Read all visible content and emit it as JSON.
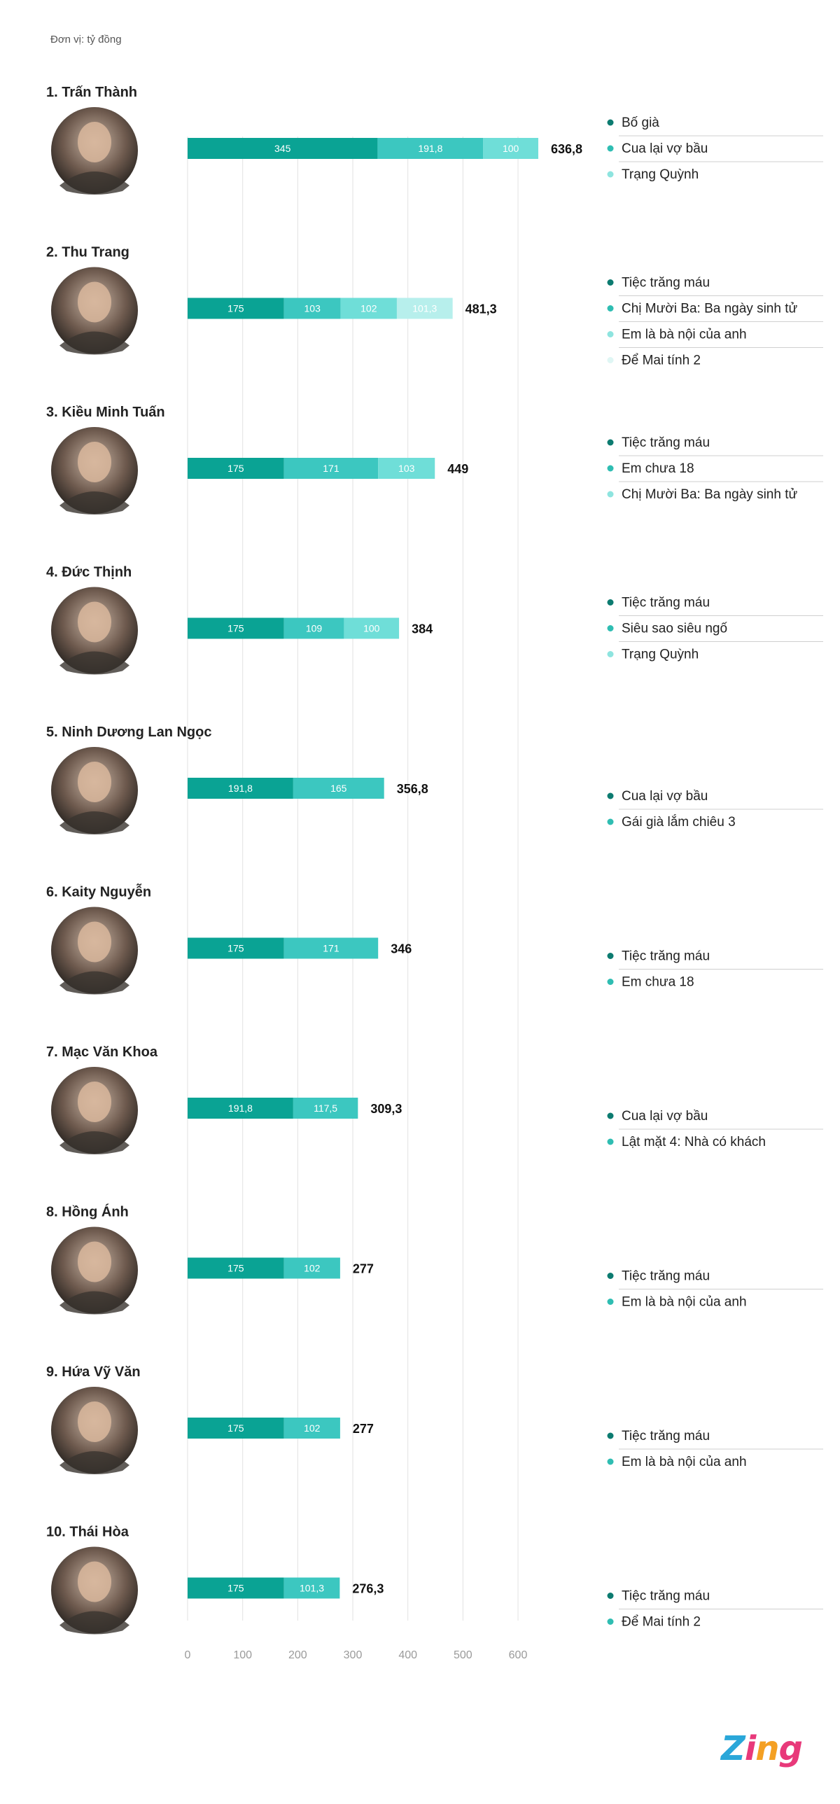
{
  "unit_label": "Đơn vị: tỷ đồng",
  "logo_text": "Zing",
  "colors": {
    "shades": [
      "#0aa394",
      "#3cc7c0",
      "#6fded8",
      "#b7efec"
    ],
    "legend_dots": [
      "#0c7b70",
      "#2fbdb2",
      "#8ee4df",
      "#dff6f4"
    ],
    "grid": "#e2e2e2",
    "divider": "#cfcfcf"
  },
  "chart_data": {
    "type": "bar",
    "orientation": "horizontal",
    "stacked": true,
    "xlim": [
      0,
      600
    ],
    "x_ticks": [
      0,
      100,
      200,
      300,
      400,
      500,
      600
    ],
    "grid": true,
    "actors": [
      {
        "name": "1. Trấn Thành",
        "total": "636,8",
        "segments": [
          {
            "film": "Bố già",
            "value": 345,
            "label": "345"
          },
          {
            "film": "Cua lại vợ bầu",
            "value": 191.8,
            "label": "191,8"
          },
          {
            "film": "Trạng Quỳnh",
            "value": 100,
            "label": "100"
          }
        ]
      },
      {
        "name": "2. Thu Trang",
        "total": "481,3",
        "segments": [
          {
            "film": "Tiệc trăng máu",
            "value": 175,
            "label": "175"
          },
          {
            "film": "Chị Mười Ba: Ba ngày sinh tử",
            "value": 103,
            "label": "103"
          },
          {
            "film": "Em là bà nội của anh",
            "value": 102,
            "label": "102"
          },
          {
            "film": "Để Mai tính 2",
            "value": 101.3,
            "label": "101,3"
          }
        ]
      },
      {
        "name": "3. Kiều Minh Tuấn",
        "total": "449",
        "segments": [
          {
            "film": "Tiệc trăng máu",
            "value": 175,
            "label": "175"
          },
          {
            "film": "Em chưa 18",
            "value": 171,
            "label": "171"
          },
          {
            "film": "Chị Mười Ba: Ba ngày sinh tử",
            "value": 103,
            "label": "103"
          }
        ]
      },
      {
        "name": "4. Đức Thịnh",
        "total": "384",
        "segments": [
          {
            "film": "Tiệc trăng máu",
            "value": 175,
            "label": "175"
          },
          {
            "film": "Siêu sao siêu ngố",
            "value": 109,
            "label": "109"
          },
          {
            "film": "Trạng Quỳnh",
            "value": 100,
            "label": "100"
          }
        ]
      },
      {
        "name": "5. Ninh Dương Lan Ngọc",
        "total": "356,8",
        "segments": [
          {
            "film": "Cua lại vợ bầu",
            "value": 191.8,
            "label": "191,8"
          },
          {
            "film": "Gái già lắm chiêu 3",
            "value": 165,
            "label": "165"
          }
        ]
      },
      {
        "name": "6. Kaity Nguyễn",
        "total": "346",
        "segments": [
          {
            "film": "Tiệc trăng máu",
            "value": 175,
            "label": "175"
          },
          {
            "film": "Em chưa 18",
            "value": 171,
            "label": "171"
          }
        ]
      },
      {
        "name": "7. Mạc Văn Khoa",
        "total": "309,3",
        "segments": [
          {
            "film": "Cua lại vợ bầu",
            "value": 191.8,
            "label": "191,8"
          },
          {
            "film": "Lật mặt 4: Nhà có khách",
            "value": 117.5,
            "label": "117,5"
          }
        ]
      },
      {
        "name": "8. Hồng Ánh",
        "total": "277",
        "segments": [
          {
            "film": "Tiệc trăng máu",
            "value": 175,
            "label": "175"
          },
          {
            "film": "Em là bà nội của anh",
            "value": 102,
            "label": "102"
          }
        ]
      },
      {
        "name": "9. Hứa Vỹ Văn",
        "total": "277",
        "segments": [
          {
            "film": "Tiệc trăng máu",
            "value": 175,
            "label": "175"
          },
          {
            "film": "Em là bà nội của anh",
            "value": 102,
            "label": "102"
          }
        ]
      },
      {
        "name": "10. Thái Hòa",
        "total": "276,3",
        "segments": [
          {
            "film": "Tiệc trăng máu",
            "value": 175,
            "label": "175"
          },
          {
            "film": "Để Mai tính 2",
            "value": 101.3,
            "label": "101,3"
          }
        ]
      }
    ]
  }
}
